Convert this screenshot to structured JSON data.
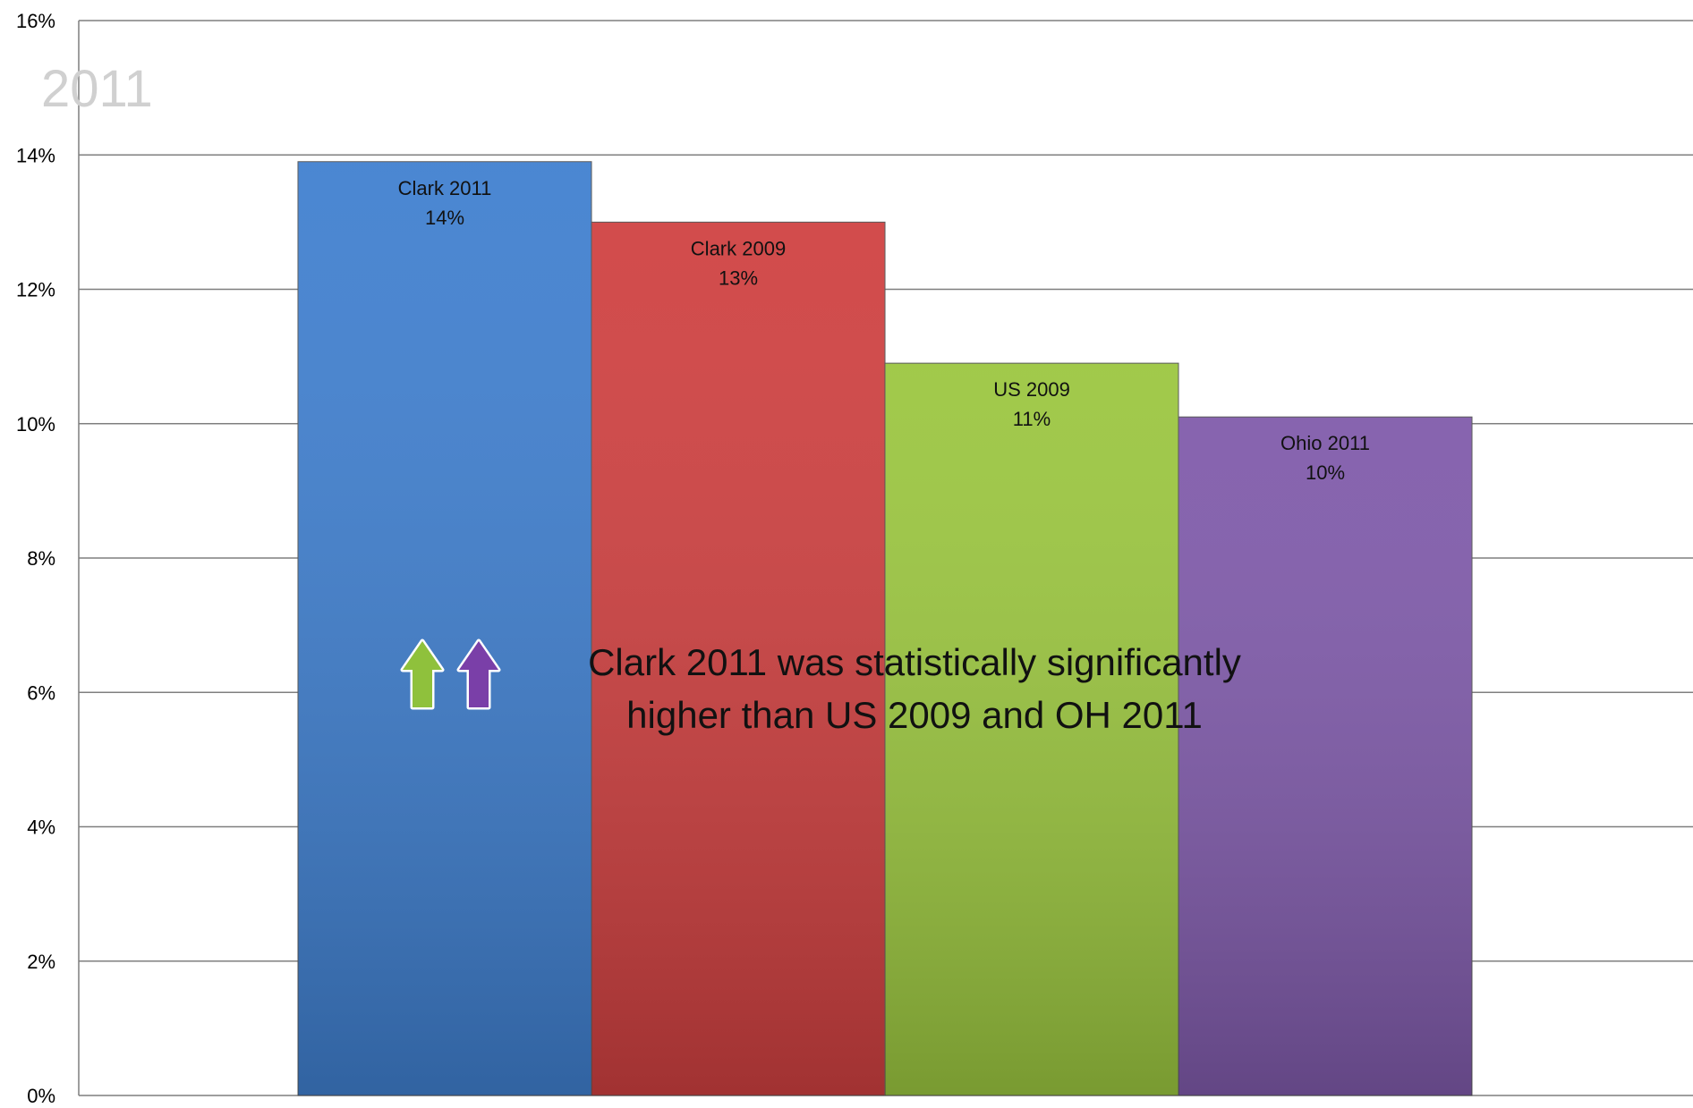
{
  "chart_data": {
    "type": "bar",
    "title": "2011",
    "categories": [
      "Clark 2011",
      "Clark 2009",
      "US 2009",
      "Ohio 2011"
    ],
    "values": [
      13.9,
      13.0,
      10.9,
      10.1
    ],
    "data_labels": [
      "14%",
      "13%",
      "11%",
      "10%"
    ],
    "colors": [
      "#3f7fcf",
      "#cf4040",
      "#9bc63f",
      "#7f5aaa"
    ],
    "ylim": [
      0,
      16
    ],
    "yticks": [
      0,
      2,
      4,
      6,
      8,
      10,
      12,
      14,
      16
    ],
    "ytick_labels": [
      "0%",
      "2%",
      "4%",
      "6%",
      "8%",
      "10%",
      "12%",
      "14%",
      "16%"
    ],
    "grid": true,
    "legend": "none",
    "annotation": {
      "line1": "Clark 2011 was statistically significantly",
      "line2": "higher than US 2009 and OH 2011",
      "arrows": [
        {
          "name": "up-arrow-green-icon",
          "color": "#8fc13c"
        },
        {
          "name": "up-arrow-purple-icon",
          "color": "#7a3fa8"
        }
      ]
    }
  }
}
